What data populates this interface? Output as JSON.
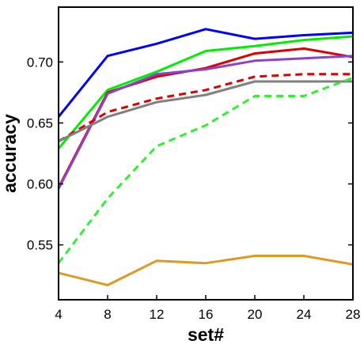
{
  "chart_data": {
    "type": "line",
    "title": "",
    "xlabel": "set#",
    "ylabel": "accuracy",
    "x": [
      4,
      8,
      12,
      16,
      20,
      24,
      28
    ],
    "xticks": [
      "4",
      "8",
      "12",
      "16",
      "20",
      "24",
      "28"
    ],
    "yticks": [
      "0.55",
      "0.60",
      "0.65",
      "0.70"
    ],
    "xlim": [
      4,
      28
    ],
    "ylim": [
      0.505,
      0.745
    ],
    "grid": false,
    "series": [
      {
        "color": "#0000ff",
        "dash": "solid",
        "values": [
          0.655,
          0.705,
          0.715,
          0.727,
          0.719,
          0.722,
          0.724
        ]
      },
      {
        "color": "#00ee00",
        "dash": "solid",
        "values": [
          0.629,
          0.677,
          0.692,
          0.709,
          0.713,
          0.718,
          0.721
        ]
      },
      {
        "color": "#dd0000",
        "dash": "solid",
        "values": [
          0.597,
          0.675,
          0.688,
          0.695,
          0.707,
          0.711,
          0.704
        ]
      },
      {
        "color": "#8844cc",
        "dash": "solid",
        "values": [
          0.596,
          0.674,
          0.69,
          0.694,
          0.701,
          0.703,
          0.705
        ]
      },
      {
        "color": "#dd0000",
        "dash": "dashed",
        "values": [
          0.635,
          0.659,
          0.67,
          0.677,
          0.688,
          0.69,
          0.69
        ]
      },
      {
        "color": "#808080",
        "dash": "solid",
        "values": [
          0.635,
          0.655,
          0.667,
          0.673,
          0.684,
          0.684,
          0.684
        ]
      },
      {
        "color": "#33ee33",
        "dash": "dashed",
        "values": [
          0.535,
          0.588,
          0.631,
          0.648,
          0.672,
          0.672,
          0.687
        ]
      },
      {
        "color": "#dd9922",
        "dash": "solid",
        "values": [
          0.527,
          0.517,
          0.537,
          0.535,
          0.541,
          0.541,
          0.534
        ]
      }
    ]
  }
}
